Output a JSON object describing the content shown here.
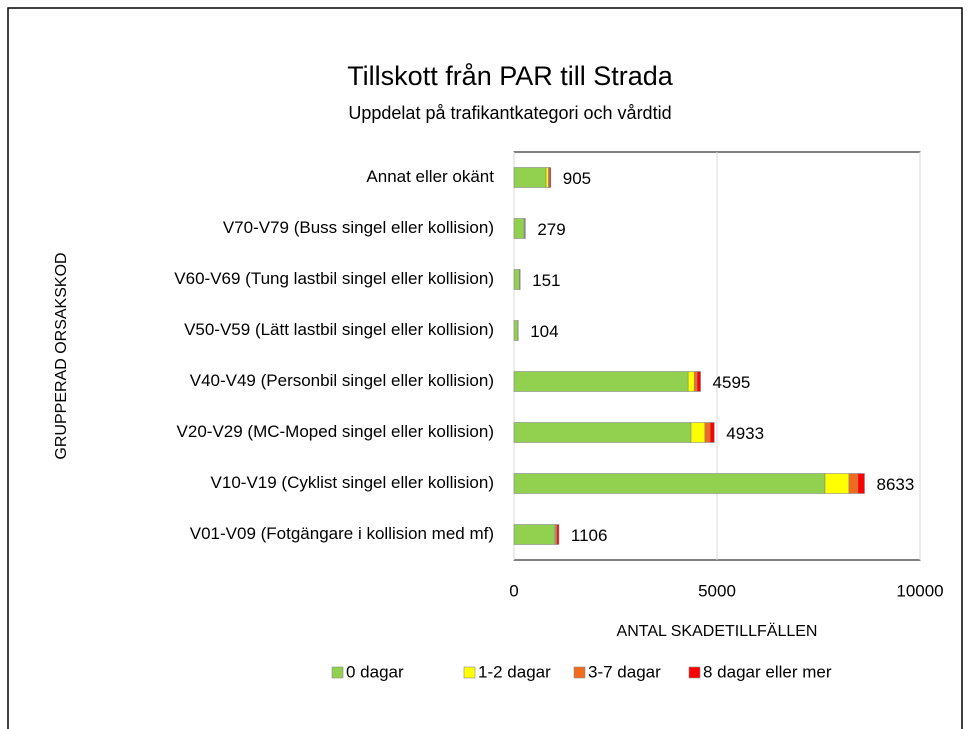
{
  "chart_data": {
    "type": "stacked_barh",
    "title": "Tillskott från PAR till Strada",
    "subtitle": "Uppdelat på trafikantkategori och vårdtid",
    "x_label": "ANTAL SKADETILLFÄLLEN",
    "y_label": "GRUPPERAD ORSAKSKOD",
    "categories": [
      "Annat eller okänt",
      "V70-V79 (Buss singel eller kollision)",
      "V60-V69 (Tung lastbil singel eller kollision)",
      "V50-V59 (Lätt lastbil singel eller kollision)",
      "V40-V49 (Personbil singel eller kollision)",
      "V20-V29 (MC-Moped singel eller kollision)",
      "V10-V19 (Cyklist singel eller kollision)",
      "V01-V09 (Fotgängare i kollision med mf)"
    ],
    "series": [
      {
        "name": "0 dagar",
        "color": "#92d050",
        "values": [
          790,
          250,
          135,
          95,
          4290,
          4360,
          7660,
          1010
        ]
      },
      {
        "name": "1-2 dagar",
        "color": "#ffff00",
        "values": [
          60,
          10,
          6,
          3,
          150,
          340,
          590,
          15
        ]
      },
      {
        "name": "3-7 dagar",
        "color": "#f26b1d",
        "values": [
          25,
          10,
          5,
          3,
          70,
          130,
          220,
          30
        ]
      },
      {
        "name": "8 dagar eller mer",
        "color": "#ff0000",
        "values": [
          30,
          9,
          5,
          3,
          85,
          103,
          163,
          51
        ]
      }
    ],
    "totals": [
      905,
      279,
      151,
      104,
      4595,
      4933,
      8633,
      1106
    ],
    "xlim": [
      0,
      10000
    ],
    "xticks": [
      0,
      5000,
      10000
    ],
    "grid": true,
    "legend": "bottom"
  }
}
